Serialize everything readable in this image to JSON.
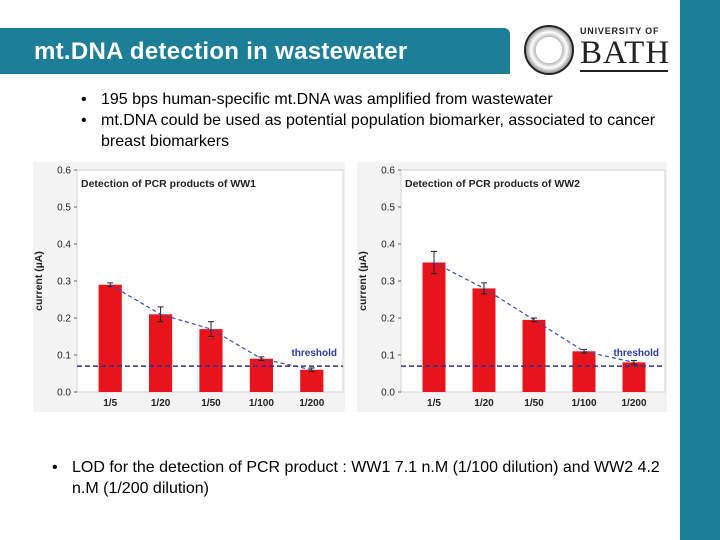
{
  "slide": {
    "title": "mt.DNA detection in wastewater",
    "logo": {
      "line1": "UNIVERSITY OF",
      "line2": "BATH"
    },
    "bullets_top": [
      "195 bps human-specific mt.DNA was amplified from wastewater",
      "mt.DNA could be used as potential population biomarker, associated to cancer breast biomarkers"
    ],
    "bullets_bottom": [
      "LOD for the detection of  PCR product : WW1 7.1 n.M (1/100 dilution) and WW2 4.2 n.M (1/200 dilution)"
    ],
    "bullet_char": "•"
  },
  "colors": {
    "accent": "#1d7f97",
    "bar": "#e8141b",
    "threshold": "#28309a"
  },
  "chart_data": [
    {
      "type": "bar",
      "title": "Detection of  PCR products of WW1",
      "ylabel": "current (µA)",
      "xlabel": "",
      "categories": [
        "1/5",
        "1/20",
        "1/50",
        "1/100",
        "1/200"
      ],
      "values": [
        0.29,
        0.21,
        0.17,
        0.09,
        0.06
      ],
      "errors": [
        0.005,
        0.02,
        0.02,
        0.005,
        0.005
      ],
      "ylim": [
        0,
        0.6
      ],
      "yticks": [
        "0.0",
        "0.1",
        "0.2",
        "0.3",
        "0.4",
        "0.5",
        "0.6"
      ],
      "threshold": {
        "value": 0.07,
        "label": "threshold"
      },
      "trendline": true
    },
    {
      "type": "bar",
      "title": "Detection of  PCR products of WW2",
      "ylabel": "current (µA)",
      "xlabel": "",
      "categories": [
        "1/5",
        "1/20",
        "1/50",
        "1/100",
        "1/200"
      ],
      "values": [
        0.35,
        0.28,
        0.195,
        0.11,
        0.08
      ],
      "errors": [
        0.03,
        0.015,
        0.005,
        0.005,
        0.005
      ],
      "ylim": [
        0,
        0.6
      ],
      "yticks": [
        "0.0",
        "0.1",
        "0.2",
        "0.3",
        "0.4",
        "0.5",
        "0.6"
      ],
      "threshold": {
        "value": 0.07,
        "label": "threshold"
      },
      "trendline": true
    }
  ]
}
